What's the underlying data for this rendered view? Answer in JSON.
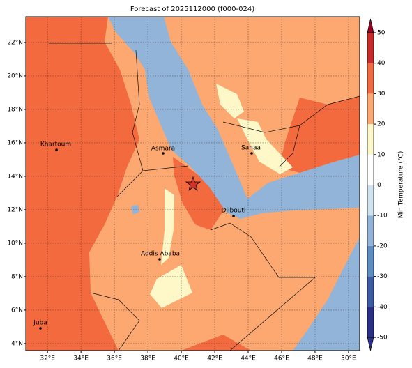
{
  "chart_data": {
    "type": "map",
    "title": "Forecast of 2025112000 (f000-024)",
    "xlim": [
      30.7,
      50.67
    ],
    "ylim": [
      3.58,
      23.54
    ],
    "xticks": [
      {
        "value": 32,
        "label": "32°E"
      },
      {
        "value": 34,
        "label": "34°E"
      },
      {
        "value": 36,
        "label": "36°E"
      },
      {
        "value": 38,
        "label": "38°E"
      },
      {
        "value": 40,
        "label": "40°E"
      },
      {
        "value": 42,
        "label": "42°E"
      },
      {
        "value": 44,
        "label": "44°E"
      },
      {
        "value": 46,
        "label": "46°E"
      },
      {
        "value": 48,
        "label": "48°E"
      },
      {
        "value": 50,
        "label": "50°E"
      }
    ],
    "yticks": [
      {
        "value": 4,
        "label": "4°N"
      },
      {
        "value": 6,
        "label": "6°N"
      },
      {
        "value": 8,
        "label": "8°N"
      },
      {
        "value": 10,
        "label": "10°N"
      },
      {
        "value": 12,
        "label": "12°N"
      },
      {
        "value": 14,
        "label": "14°N"
      },
      {
        "value": 16,
        "label": "16°N"
      },
      {
        "value": 18,
        "label": "18°N"
      },
      {
        "value": 20,
        "label": "20°N"
      },
      {
        "value": 22,
        "label": "22°N"
      }
    ],
    "grid": true,
    "cities": [
      "Khartoum",
      "Asmara",
      "Sanaa",
      "Djibouti",
      "Addis Ababa",
      "Juba"
    ],
    "colorbar": {
      "label": "Min Temperature (°C)",
      "lim": [
        -50,
        50
      ],
      "ticks": [
        -50,
        -40,
        -30,
        -20,
        -10,
        0,
        10,
        20,
        30,
        40,
        50
      ],
      "colors": [
        "#2b2f8c",
        "#3a5ca8",
        "#5b8fc4",
        "#91b4d8",
        "#cfe3ef",
        "#ffffff",
        "#fef7c7",
        "#fca870",
        "#f26a3e",
        "#cc2a2a",
        "#990022"
      ]
    }
  }
}
